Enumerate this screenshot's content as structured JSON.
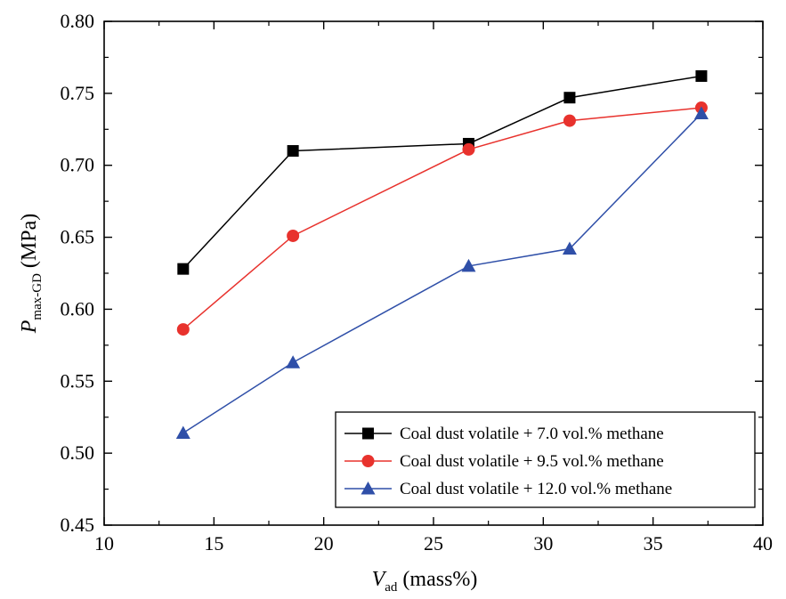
{
  "chart_data": {
    "type": "line",
    "xlabel": {
      "main": "V",
      "sub": "ad",
      "rest": " (mass%)"
    },
    "ylabel": {
      "main": "P",
      "sub": "max-GD",
      "rest": " (MPa)"
    },
    "xlim": [
      10,
      40
    ],
    "ylim": [
      0.45,
      0.8
    ],
    "xticks": [
      10,
      15,
      20,
      25,
      30,
      35,
      40
    ],
    "xtick_labels": [
      "10",
      "15",
      "20",
      "25",
      "30",
      "35",
      "40"
    ],
    "yticks": [
      0.45,
      0.5,
      0.55,
      0.6,
      0.65,
      0.7,
      0.75,
      0.8
    ],
    "ytick_labels": [
      "0.45",
      "0.50",
      "0.55",
      "0.60",
      "0.65",
      "0.70",
      "0.75",
      "0.80"
    ],
    "grid": false,
    "legend_position": "bottom-right",
    "x": [
      13.6,
      18.6,
      26.6,
      31.2,
      37.2
    ],
    "series": [
      {
        "name": "Coal dust volatile + 7.0 vol.% methane",
        "marker": "square",
        "color": "#000000",
        "values": [
          0.628,
          0.71,
          0.715,
          0.747,
          0.762
        ]
      },
      {
        "name": "Coal dust volatile + 9.5 vol.% methane",
        "marker": "circle",
        "color": "#e8322d",
        "values": [
          0.586,
          0.651,
          0.711,
          0.731,
          0.74
        ]
      },
      {
        "name": "Coal dust volatile + 12.0 vol.% methane",
        "marker": "triangle",
        "color": "#2f4fa8",
        "values": [
          0.514,
          0.563,
          0.63,
          0.642,
          0.736
        ]
      }
    ]
  }
}
